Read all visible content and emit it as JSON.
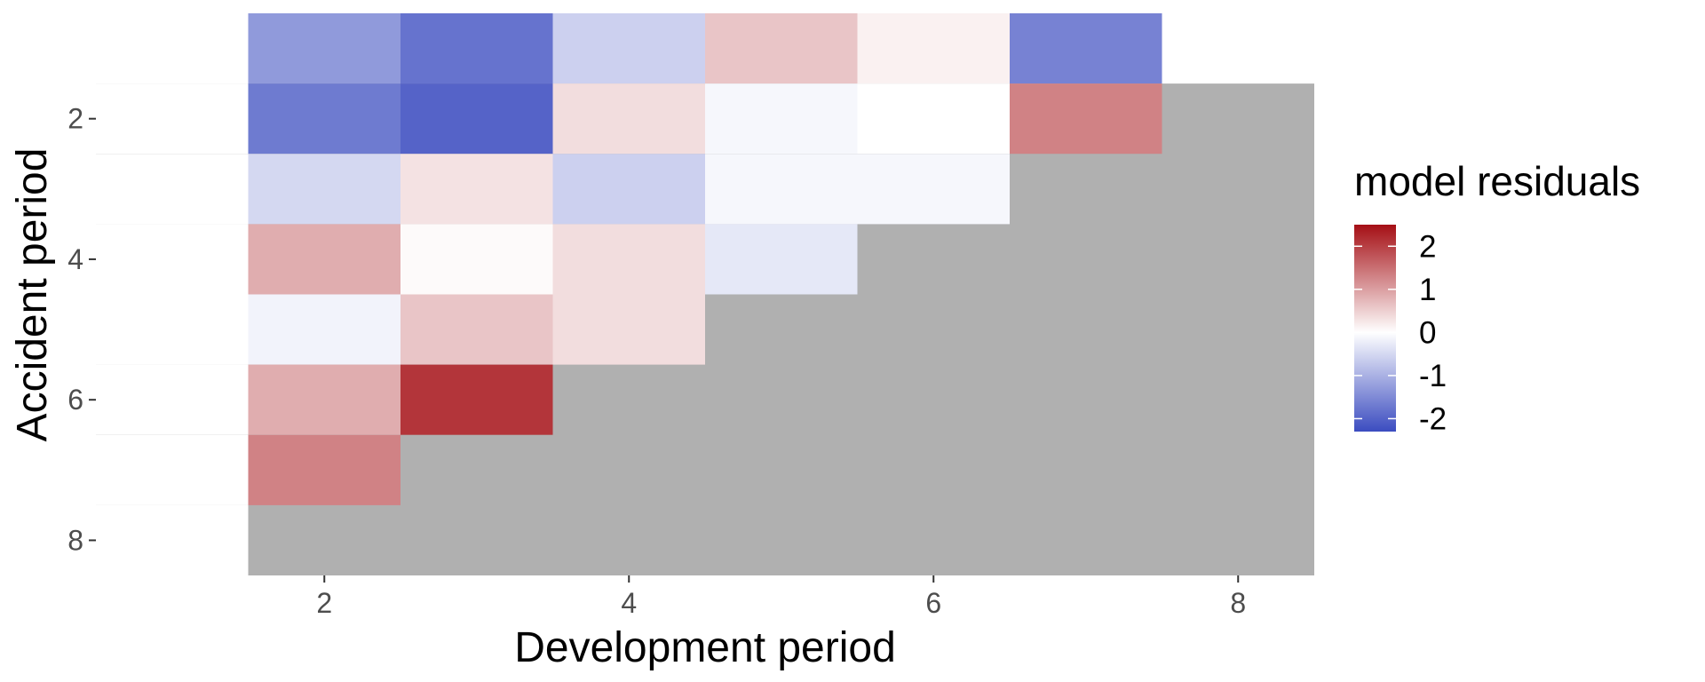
{
  "chart_data": {
    "type": "heatmap",
    "xlabel": "Development period",
    "ylabel": "Accident period",
    "x_ticks": [
      2,
      4,
      6,
      8
    ],
    "y_ticks": [
      2,
      4,
      6,
      8
    ],
    "xlim": [
      0.5,
      8.5
    ],
    "ylim": [
      0.5,
      8.5
    ],
    "y_reversed": true,
    "grid": false,
    "panel_background": "#b0b0b0",
    "legend": {
      "title": "model residuals",
      "placement": "right",
      "breaks": [
        2,
        1,
        0,
        -1,
        -2
      ],
      "break_labels": [
        "2",
        "1",
        "0",
        "-1",
        "-2"
      ],
      "range": [
        -2.3,
        2.5
      ],
      "colors": {
        "low": "#3b4cc0",
        "mid": "#ffffff",
        "high": "#a50f15"
      }
    },
    "cells": [
      {
        "dev": 1,
        "acc": 1,
        "value": 0
      },
      {
        "dev": 2,
        "acc": 1,
        "value": -1.3
      },
      {
        "dev": 3,
        "acc": 1,
        "value": -1.8
      },
      {
        "dev": 4,
        "acc": 1,
        "value": -0.6
      },
      {
        "dev": 5,
        "acc": 1,
        "value": 0.6
      },
      {
        "dev": 6,
        "acc": 1,
        "value": 0.15
      },
      {
        "dev": 7,
        "acc": 1,
        "value": -1.6
      },
      {
        "dev": 8,
        "acc": 1,
        "value": 0
      },
      {
        "dev": 1,
        "acc": 2,
        "value": 0
      },
      {
        "dev": 2,
        "acc": 2,
        "value": -1.7
      },
      {
        "dev": 3,
        "acc": 2,
        "value": -2.0
      },
      {
        "dev": 4,
        "acc": 2,
        "value": 0.35
      },
      {
        "dev": 5,
        "acc": 2,
        "value": -0.1
      },
      {
        "dev": 6,
        "acc": 2,
        "value": 0.0
      },
      {
        "dev": 7,
        "acc": 2,
        "value": 1.3
      },
      {
        "dev": 1,
        "acc": 3,
        "value": 0
      },
      {
        "dev": 2,
        "acc": 3,
        "value": -0.5
      },
      {
        "dev": 3,
        "acc": 3,
        "value": 0.3
      },
      {
        "dev": 4,
        "acc": 3,
        "value": -0.6
      },
      {
        "dev": 5,
        "acc": 3,
        "value": -0.1
      },
      {
        "dev": 6,
        "acc": 3,
        "value": -0.1
      },
      {
        "dev": 1,
        "acc": 4,
        "value": 0
      },
      {
        "dev": 2,
        "acc": 4,
        "value": 0.85
      },
      {
        "dev": 3,
        "acc": 4,
        "value": 0.05
      },
      {
        "dev": 4,
        "acc": 4,
        "value": 0.35
      },
      {
        "dev": 5,
        "acc": 4,
        "value": -0.3
      },
      {
        "dev": 1,
        "acc": 5,
        "value": 0
      },
      {
        "dev": 2,
        "acc": 5,
        "value": -0.15
      },
      {
        "dev": 3,
        "acc": 5,
        "value": 0.6
      },
      {
        "dev": 4,
        "acc": 5,
        "value": 0.35
      },
      {
        "dev": 1,
        "acc": 6,
        "value": 0
      },
      {
        "dev": 2,
        "acc": 6,
        "value": 0.85
      },
      {
        "dev": 3,
        "acc": 6,
        "value": 2.1
      },
      {
        "dev": 1,
        "acc": 7,
        "value": 0
      },
      {
        "dev": 2,
        "acc": 7,
        "value": 1.3
      },
      {
        "dev": 1,
        "acc": 8,
        "value": 0
      }
    ]
  }
}
